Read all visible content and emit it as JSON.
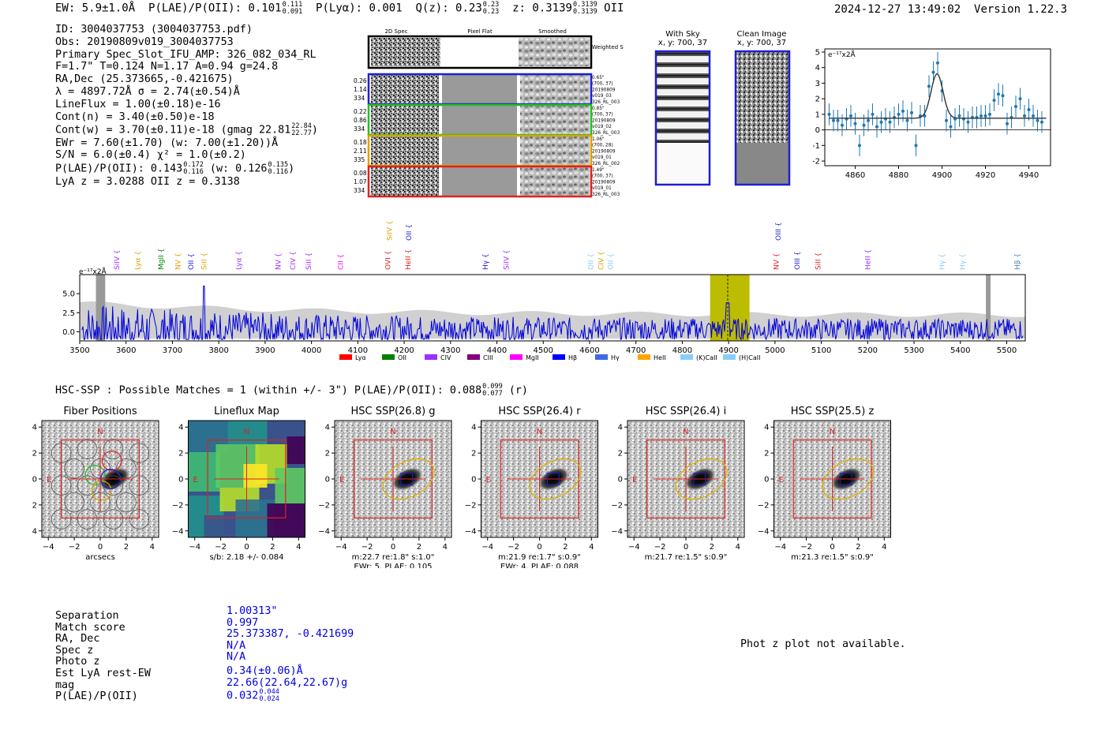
{
  "header": {
    "ew": "EW: 5.9±1.0Å",
    "plae_label": "P(LAE)/P(OII): 0.101",
    "plae_hi": "0.111",
    "plae_lo": "0.091",
    "plya": "P(Lyα): 0.001",
    "q_label": "Q(z): 0.23",
    "q_hi": "0.23",
    "q_lo": "0.23",
    "z_label": "z: 0.3139",
    "z_hi": "0.3139",
    "z_lo": "0.3139",
    "z_line": "OII",
    "timestamp": "2024-12-27 13:49:02",
    "version": "Version 1.22.3"
  },
  "info": {
    "id": "ID: 3004037753 (3004037753.pdf)",
    "obs": "Obs: 20190809v019_3004037753",
    "primary": "Primary Spec_Slot_IFU_AMP: 326_082_034_RL",
    "params": "F=1.7\"  T=0.124  N=1.17  A=0.94  g=24.8",
    "radec": "RA,Dec (25.373665,-0.421675)",
    "lambda": "λ = 4897.72Å  σ = 2.74(±0.54)Å",
    "lineflux": "LineFlux = 1.00(±0.18)e-16",
    "contn": "Cont(n) = 3.40(±0.50)e-18",
    "contw": "Cont(w) = 3.70(±0.11)e-18 (gmag 22.81",
    "contw_hi": "22.84",
    "contw_lo": "22.77",
    "contw_end": ")",
    "ewr": "EWr = 7.60(±1.70) (w: 7.00(±1.20))Å",
    "sn": "S/N = 6.0(±0.4)  χ² = 1.0(±0.2)",
    "plae": "P(LAE)/P(OII): 0.143",
    "plae_hi": "0.172",
    "plae_lo": "0.116",
    "plae_w": "(w: 0.126",
    "plae_w_hi": "0.135",
    "plae_w_lo": "0.116",
    "plae_w_end": ")",
    "lya_z": "LyA z = 3.0288  OII z = 0.3138"
  },
  "cutouts": {
    "col_titles": [
      "2D Spec",
      "Pixel Flat",
      "Smoothed"
    ],
    "weighted_sum": "Weighted Sum",
    "rows": [
      {
        "stats": [
          "0.26",
          "1.14",
          "334"
        ],
        "meta": [
          "0.65\"",
          "(700, 37)",
          "20190809",
          "v019_03",
          "326_RL_003"
        ],
        "color": "#1f1fd0"
      },
      {
        "stats": [
          "0.22",
          "0.86",
          "334"
        ],
        "meta": [
          "0.85\"",
          "(700, 37)",
          "20190809",
          "v019_02",
          "326_RL_003"
        ],
        "color": "#22c022"
      },
      {
        "stats": [
          "0.18",
          "2.11",
          "335"
        ],
        "meta": [
          "1.06\"",
          "(700, 28)",
          "20190809",
          "v019_01",
          "326_RL_002"
        ],
        "color": "#e0a000"
      },
      {
        "stats": [
          "0.08",
          "1.07",
          "334"
        ],
        "meta": [
          "1.49\"",
          "(700, 37)",
          "20190809",
          "v019_01",
          "326_RL_003"
        ],
        "color": "#e02020"
      }
    ]
  },
  "sky_panels": [
    {
      "title": "With Sky",
      "sub": "x, y: 700, 37"
    },
    {
      "title": "Clean Image",
      "sub": "x, y: 700, 37"
    }
  ],
  "fit_chart": {
    "unit_label": "e⁻¹⁷x2Å"
  },
  "chart_data": [
    {
      "type": "scatter",
      "title": "Line fit",
      "xlabel": "",
      "ylabel": "e-17x2Å",
      "xlim": [
        4846,
        4950
      ],
      "ylim": [
        -2.3,
        5.2
      ],
      "xticks": [
        4860,
        4880,
        4900,
        4920,
        4940
      ],
      "yticks": [
        -2,
        -1,
        0,
        1,
        2,
        3,
        4,
        5
      ],
      "x": [
        4848,
        4850,
        4852,
        4854,
        4856,
        4858,
        4860,
        4862,
        4864,
        4866,
        4868,
        4870,
        4872,
        4874,
        4876,
        4878,
        4880,
        4882,
        4884,
        4886,
        4888,
        4890,
        4892,
        4894,
        4896,
        4898,
        4900,
        4902,
        4904,
        4906,
        4908,
        4910,
        4912,
        4914,
        4916,
        4918,
        4920,
        4922,
        4924,
        4926,
        4928,
        4930,
        4932,
        4934,
        4936,
        4938,
        4940,
        4942,
        4944,
        4946
      ],
      "y": [
        1.0,
        0.6,
        0.6,
        0.3,
        0.7,
        0.9,
        0.4,
        -1.0,
        0.3,
        0.6,
        1.0,
        0.2,
        0.5,
        0.7,
        0.5,
        0.8,
        1.0,
        1.2,
        0.6,
        1.1,
        -1.0,
        0.9,
        0.9,
        2.8,
        3.7,
        4.3,
        2.5,
        0.6,
        0.2,
        0.7,
        0.9,
        0.7,
        0.5,
        0.8,
        0.8,
        0.9,
        0.9,
        1.0,
        1.9,
        2.3,
        2.2,
        0.4,
        0.8,
        1.5,
        2.0,
        0.9,
        1.3,
        0.9,
        0.6,
        0.5
      ],
      "err": [
        0.7,
        0.7,
        0.7,
        0.7,
        0.7,
        0.7,
        0.7,
        0.7,
        0.7,
        0.7,
        0.7,
        0.7,
        0.7,
        0.7,
        0.7,
        0.7,
        0.7,
        0.7,
        0.7,
        0.7,
        0.7,
        0.7,
        0.7,
        0.7,
        0.7,
        0.7,
        0.7,
        0.7,
        0.7,
        0.7,
        0.7,
        0.7,
        0.7,
        0.7,
        0.7,
        0.7,
        0.7,
        0.7,
        0.7,
        0.7,
        0.7,
        0.7,
        0.7,
        0.7,
        0.7,
        0.7,
        0.7,
        0.7,
        0.7,
        0.7
      ],
      "fit": {
        "center": 4897.7,
        "sigma": 2.74,
        "amp": 2.85,
        "baseline": 0.75
      }
    },
    {
      "type": "line",
      "title": "Full spectrum",
      "xlabel": "",
      "ylabel": "e-17x2Å",
      "xlim": [
        3500,
        5540
      ],
      "ylim": [
        -1.2,
        7.5
      ],
      "xticks": [
        3500,
        3600,
        3700,
        3800,
        3900,
        4000,
        4100,
        4200,
        4300,
        4400,
        4500,
        4600,
        4700,
        4800,
        4900,
        5000,
        5100,
        5200,
        5300,
        5400,
        5500
      ],
      "yticks": [
        0.0,
        2.5,
        5.0
      ],
      "highlight": {
        "from": 4860,
        "to": 4945,
        "line": 4898
      },
      "masked": [
        [
          3535,
          3555
        ],
        [
          5455,
          5465
        ]
      ],
      "lines": [
        {
          "name": "SiIV",
          "x": 3580,
          "color": "#9b30ff"
        },
        {
          "name": "Lyα",
          "x": 3625,
          "color": "#e0a000"
        },
        {
          "name": "MgII",
          "x": 3675,
          "color": "#008000"
        },
        {
          "name": "NV",
          "x": 3712,
          "color": "#e0a000"
        },
        {
          "name": "OII",
          "x": 3740,
          "color": "#1f1fd0"
        },
        {
          "name": "SiII",
          "x": 3768,
          "color": "#e0a000"
        },
        {
          "name": "Lyα",
          "x": 3843,
          "color": "#9b30ff"
        },
        {
          "name": "NV",
          "x": 3928,
          "color": "#9b30ff"
        },
        {
          "name": "CIV",
          "x": 3960,
          "color": "#9b30ff"
        },
        {
          "name": "SiII",
          "x": 3994,
          "color": "#9b30ff"
        },
        {
          "name": "CII",
          "x": 4063,
          "color": "#ff00ff"
        },
        {
          "name": "OVI",
          "x": 4165,
          "color": "#e02020"
        },
        {
          "name": "SiIV",
          "x": 4168,
          "color": "#e0a000"
        },
        {
          "name": "HeII",
          "x": 4208,
          "color": "#e02020"
        },
        {
          "name": "OII",
          "x": 4210,
          "color": "#1f1fd0"
        },
        {
          "name": "Hγ",
          "x": 4375,
          "color": "#1f1fd0"
        },
        {
          "name": "SiIV",
          "x": 4420,
          "color": "#9b30ff"
        },
        {
          "name": "OII",
          "x": 4603,
          "color": "#87cefa"
        },
        {
          "name": "CIV",
          "x": 4625,
          "color": "#e0a000"
        },
        {
          "name": "OII",
          "x": 4645,
          "color": "#87cefa"
        },
        {
          "name": "NV",
          "x": 5003,
          "color": "#e02020"
        },
        {
          "name": "OIII",
          "x": 5007,
          "color": "#1f1fd0"
        },
        {
          "name": "OIII",
          "x": 5048,
          "color": "#1f1fd0"
        },
        {
          "name": "SiII",
          "x": 5093,
          "color": "#e02020"
        },
        {
          "name": "HeII",
          "x": 5200,
          "color": "#9b30ff"
        },
        {
          "name": "Hγ",
          "x": 5360,
          "color": "#87cefa"
        },
        {
          "name": "Hγ",
          "x": 5405,
          "color": "#87cefa"
        },
        {
          "name": "Hβ",
          "x": 5523,
          "color": "#4682b4"
        }
      ]
    }
  ],
  "spectrum": {
    "unit_label": "e⁻¹⁷x2Å",
    "legend": [
      {
        "label": "Lyα",
        "color": "#ff0000"
      },
      {
        "label": "OII",
        "color": "#008000"
      },
      {
        "label": "CIV",
        "color": "#9b30ff"
      },
      {
        "label": "CIII",
        "color": "#800080"
      },
      {
        "label": "MgII",
        "color": "#ff00ff"
      },
      {
        "label": "Hβ",
        "color": "#0000ff"
      },
      {
        "label": "Hγ",
        "color": "#4169e1"
      },
      {
        "label": "HeII",
        "color": "#ffa500"
      },
      {
        "label": "(K)CaII",
        "color": "#87cefa"
      },
      {
        "label": "(H)CaII",
        "color": "#87cefa"
      }
    ]
  },
  "hsc": {
    "title": "HSC-SSP : Possible Matches = 1 (within +/- 3\")  P(LAE)/P(OII): 0.088",
    "title_hi": "0.099",
    "title_lo": "0.077",
    "title_end": "(r)",
    "panels": [
      {
        "title": "Fiber Positions",
        "caption1": "arcsecs",
        "caption2": ""
      },
      {
        "title": "Lineflux Map",
        "caption1": "s/b: 2.18 +/- 0.084",
        "caption2": ""
      },
      {
        "title": "HSC SSP(26.8) g",
        "caption1": "m:22.7  re:1.8\"  s:1.0\"",
        "caption2": "EWr: 5, PLAE: 0.105"
      },
      {
        "title": "HSC SSP(26.4) r",
        "caption1": "m:21.9  re:1.7\"  s:0.9\"",
        "caption2": "EWr: 4, PLAE: 0.088"
      },
      {
        "title": "HSC SSP(26.4) i",
        "caption1": "m:21.7  re:1.5\"  s:0.9\"",
        "caption2": ""
      },
      {
        "title": "HSC SSP(25.5) z",
        "caption1": "m:21.3  re:1.5\"  s:0.9\"",
        "caption2": ""
      }
    ],
    "axis_ticks": [
      "−4",
      "−2",
      "0",
      "2",
      "4"
    ],
    "north": "N",
    "east": "E"
  },
  "match": {
    "labels": [
      "Separation",
      "Match score",
      "RA, Dec",
      "Spec z",
      "Photo z",
      "Est LyA rest-EW",
      "mag",
      "P(LAE)/P(OII)"
    ],
    "values": [
      "1.00313\"",
      "0.997",
      "25.373387, -0.421699",
      "N/A",
      "N/A",
      "0.34(±0.06)Å",
      "22.66(22.64,22.67)g",
      "0.032"
    ],
    "plae_hi": "0.044",
    "plae_lo": "0.024"
  },
  "photz": "Phot z plot not available."
}
